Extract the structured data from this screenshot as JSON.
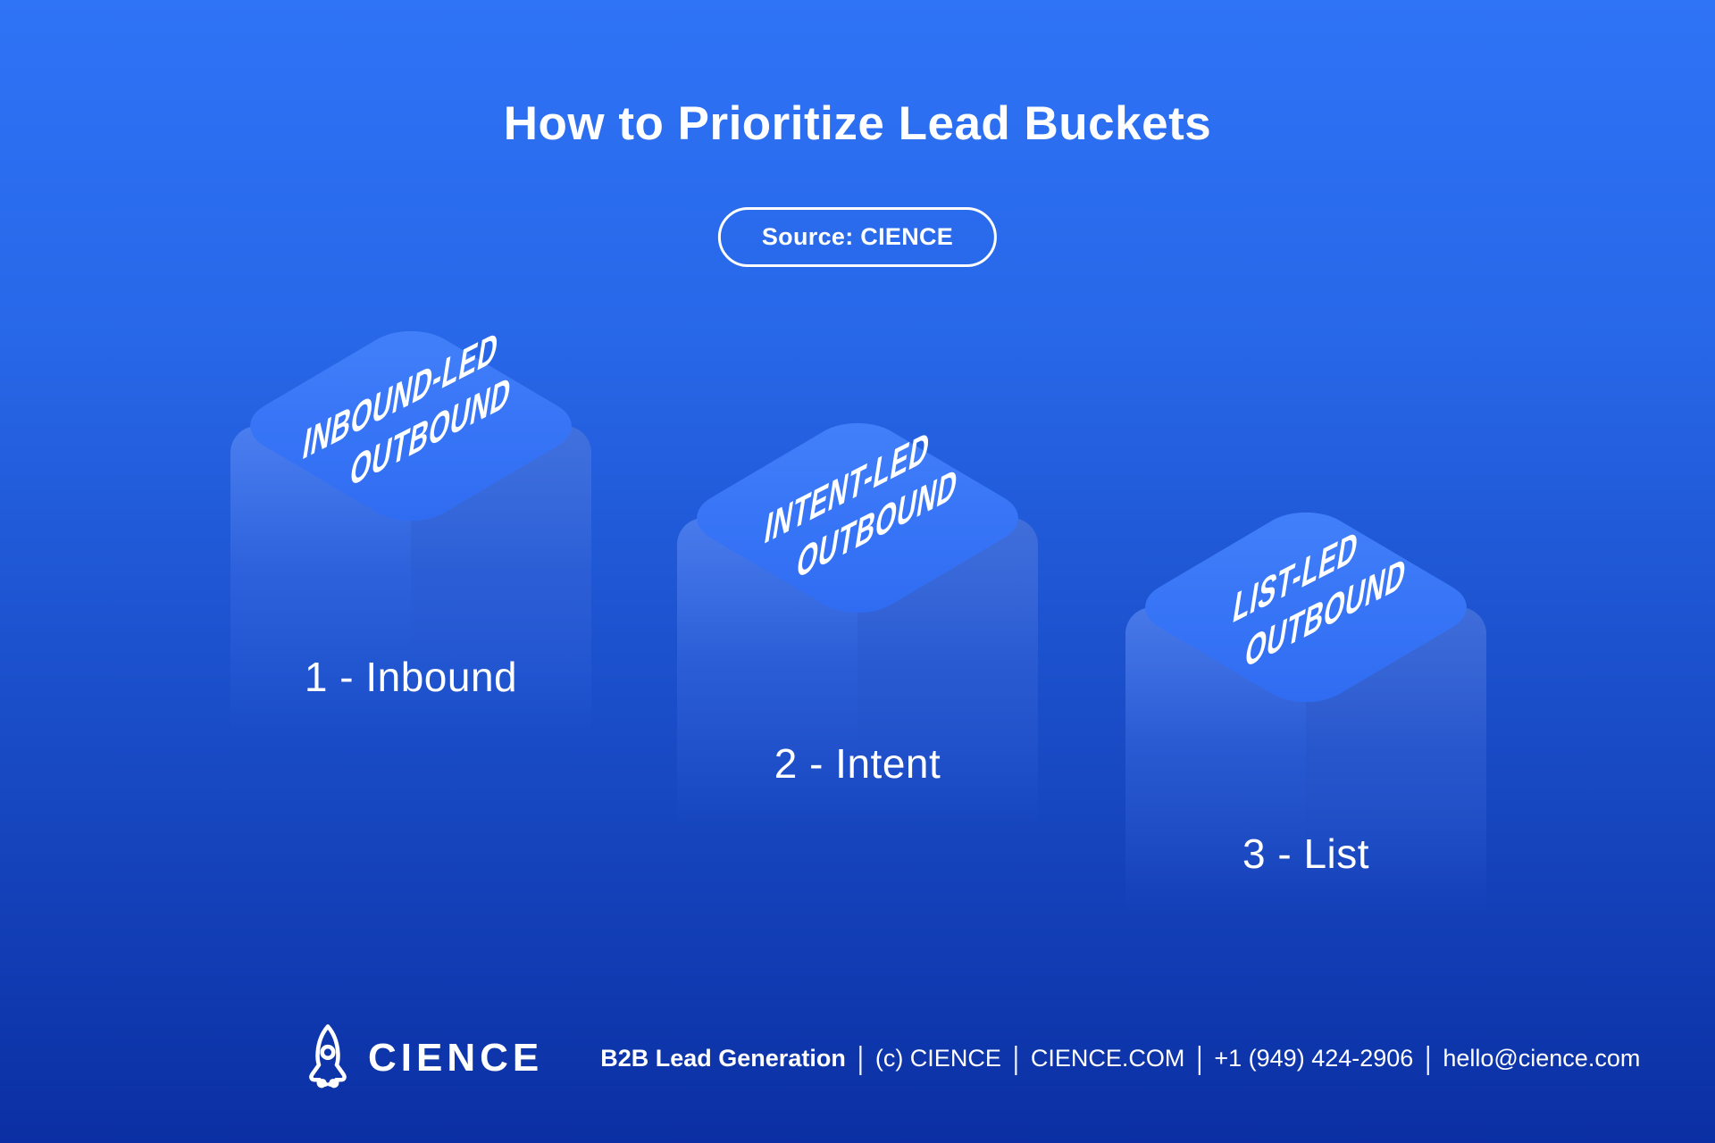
{
  "header": {
    "title": "How to Prioritize Lead Buckets",
    "source_label": "Source: CIENCE"
  },
  "pillars": [
    {
      "rank": 1,
      "top_label_line1": "INBOUND-LED",
      "top_label_line2": "OUTBOUND",
      "caption": "1 - Inbound"
    },
    {
      "rank": 2,
      "top_label_line1": "INTENT-LED",
      "top_label_line2": "OUTBOUND",
      "caption": "2 - Intent"
    },
    {
      "rank": 3,
      "top_label_line1": "LIST-LED",
      "top_label_line2": "OUTBOUND",
      "caption": "3 - List"
    }
  ],
  "footer": {
    "logo_icon": "rocket-icon",
    "brand": "CIENCE",
    "separator": "|",
    "info_segments": [
      "B2B Lead Generation",
      "(c) CIENCE",
      "CIENCE.COM",
      "+1 (949) 424-2906",
      "hello@cience.com"
    ]
  },
  "colors": {
    "bg_top": "#2F73F6",
    "bg_bottom": "#0B2FA3",
    "face_top": "#4381FA",
    "face_bottom": "#2F6BF1",
    "text": "#FFFFFF"
  }
}
